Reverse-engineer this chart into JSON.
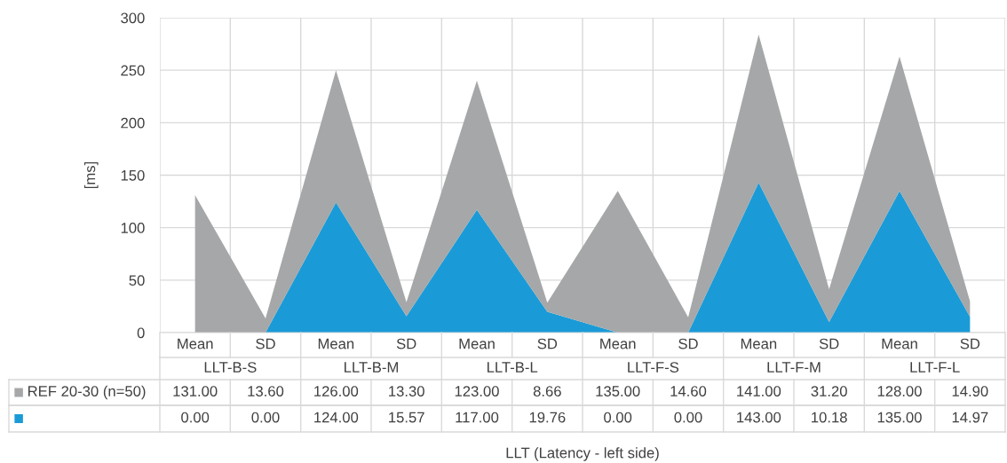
{
  "chart_data": {
    "type": "area",
    "stacked": true,
    "categories": [
      "Mean",
      "SD",
      "Mean",
      "SD",
      "Mean",
      "SD",
      "Mean",
      "SD",
      "Mean",
      "SD",
      "Mean",
      "SD"
    ],
    "series": [
      {
        "color": "#1a9bd7",
        "values": [
          0,
          0,
          124,
          15.57,
          117,
          19.76,
          0,
          0,
          143,
          10.18,
          135,
          14.97
        ],
        "value_labels": [
          "0.00",
          "0.00",
          "124.00",
          "15.57",
          "117.00",
          "19.76",
          "0.00",
          "0.00",
          "143.00",
          "10.18",
          "135.00",
          "14.97"
        ]
      },
      {
        "name": "REF 20-30 (n=50)",
        "color": "#a5a7a8",
        "values": [
          131,
          13.6,
          126,
          13.3,
          123,
          8.66,
          135,
          14.6,
          141,
          31.2,
          128,
          14.9
        ],
        "value_labels": [
          "131.00",
          "13.60",
          "126.00",
          "13.30",
          "123.00",
          "8.66",
          "135.00",
          "14.60",
          "141.00",
          "31.20",
          "128.00",
          "14.90"
        ]
      }
    ],
    "ylim": [
      0,
      300
    ],
    "yticks": [
      0,
      50,
      100,
      150,
      200,
      250,
      300
    ],
    "ylabel": "[ms]",
    "annotations": [
      "LLT-B-S",
      "LLT-B-M",
      "LLT-B-L",
      "LLT-F-S",
      "LLT-F-M",
      "LLT-F-L",
      "LLT (Latency - left side)"
    ],
    "grid": true
  }
}
